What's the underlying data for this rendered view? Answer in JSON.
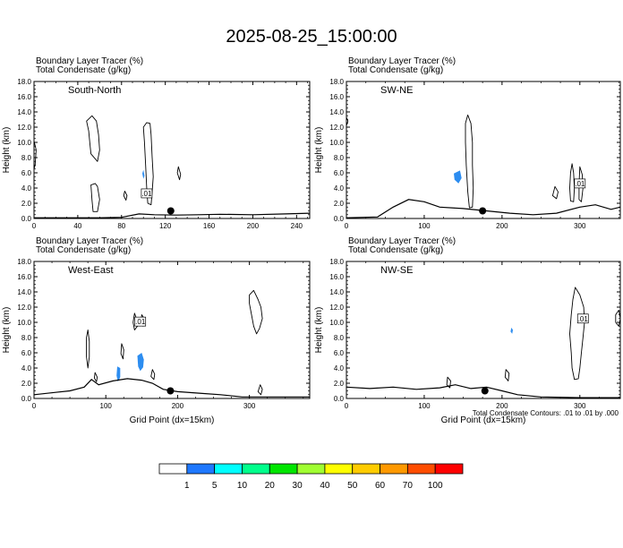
{
  "title": "2025-08-25_15:00:00",
  "colors": {
    "terrain": "#000000",
    "contour": "#000000",
    "tracer": "#2d8df0",
    "point": "#000000"
  },
  "footnote": "Total Condensate Contours: .01 to .01 by .000",
  "colorbar": {
    "colors": [
      "#ffffff",
      "#1e78ff",
      "#00ffff",
      "#00ff8c",
      "#00e600",
      "#a0ff32",
      "#ffff00",
      "#ffcc00",
      "#ff9900",
      "#ff4d00",
      "#ff0000"
    ],
    "labels": [
      "1",
      "5",
      "10",
      "20",
      "30",
      "40",
      "50",
      "60",
      "70",
      "100"
    ]
  },
  "chart_data": [
    {
      "type": "area",
      "direction": "South-North",
      "label1": "Boundary Layer Tracer   (%)",
      "label2": "Total Condensate   (g/kg)",
      "ylabel": "Height (km)",
      "xlabel": "",
      "xlim": [
        0,
        252
      ],
      "ylim": [
        0,
        18
      ],
      "xticks": [
        0,
        40,
        80,
        120,
        160,
        200,
        240
      ],
      "yticks": [
        "0.0",
        "2.0",
        "4.0",
        "6.0",
        "8.0",
        "10.0",
        "12.0",
        "14.0",
        "16.0",
        "18.0"
      ],
      "contour_label": ".01",
      "terrain": [
        [
          0,
          0.1
        ],
        [
          60,
          0.1
        ],
        [
          80,
          0.15
        ],
        [
          96,
          0.6
        ],
        [
          110,
          0.5
        ],
        [
          130,
          0.45
        ],
        [
          150,
          0.5
        ],
        [
          170,
          0.55
        ],
        [
          200,
          0.5
        ],
        [
          230,
          0.6
        ],
        [
          252,
          0.7
        ]
      ],
      "contours": [
        [
          [
            48,
            12.8
          ],
          [
            50,
            11.5
          ],
          [
            51,
            10
          ],
          [
            52,
            8.5
          ],
          [
            58,
            7.5
          ],
          [
            60,
            9
          ],
          [
            59,
            11
          ],
          [
            57,
            12.8
          ],
          [
            53,
            13.5
          ]
        ],
        [
          [
            52,
            4.4
          ],
          [
            53,
            2.4
          ],
          [
            54,
            0.9
          ],
          [
            58,
            0.9
          ],
          [
            60,
            2.5
          ],
          [
            58,
            4.2
          ],
          [
            56,
            4.6
          ]
        ],
        [
          [
            103,
            12.6
          ],
          [
            106,
            12.5
          ],
          [
            107,
            11
          ],
          [
            108,
            8
          ],
          [
            109,
            5.5
          ],
          [
            108,
            3.5
          ],
          [
            107,
            1.8
          ],
          [
            104,
            2
          ],
          [
            103,
            4
          ],
          [
            102,
            7
          ],
          [
            101,
            10
          ],
          [
            100,
            12
          ]
        ],
        [
          [
            0,
            10.2
          ],
          [
            2,
            9
          ],
          [
            1,
            7
          ],
          [
            -1,
            6
          ]
        ],
        [
          [
            132,
            6.8
          ],
          [
            134,
            5.8
          ],
          [
            133,
            5.1
          ],
          [
            131,
            6
          ]
        ],
        [
          [
            83,
            3.6
          ],
          [
            85,
            3
          ],
          [
            84,
            2.4
          ],
          [
            82,
            3
          ]
        ]
      ],
      "tracer": [
        [
          [
            100,
            6.4
          ],
          [
            101,
            5.6
          ],
          [
            100,
            5.2
          ],
          [
            99,
            5.9
          ]
        ]
      ],
      "point": [
        125,
        1.0
      ],
      "label_at": [
        103,
        3.3
      ]
    },
    {
      "type": "area",
      "direction": "SW-NE",
      "label1": "Boundary Layer Tracer   (%)",
      "label2": "Total Condensate   (g/kg)",
      "ylabel": "Height (km)",
      "xlabel": "",
      "xlim": [
        0,
        352
      ],
      "ylim": [
        0,
        18
      ],
      "xticks": [
        0,
        100,
        200,
        300
      ],
      "yticks": [
        "0.0",
        "2.0",
        "4.0",
        "6.0",
        "8.0",
        "10.0",
        "12.0",
        "14.0",
        "16.0",
        "18.0"
      ],
      "contour_label": ".01",
      "terrain": [
        [
          0,
          0.1
        ],
        [
          40,
          0.2
        ],
        [
          60,
          1.5
        ],
        [
          80,
          2.5
        ],
        [
          100,
          2.2
        ],
        [
          120,
          1.5
        ],
        [
          150,
          1.3
        ],
        [
          180,
          1.0
        ],
        [
          210,
          0.7
        ],
        [
          240,
          0.5
        ],
        [
          270,
          0.7
        ],
        [
          300,
          1.5
        ],
        [
          320,
          1.8
        ],
        [
          340,
          1.2
        ],
        [
          352,
          1.5
        ]
      ],
      "contours": [
        [
          [
            156,
            13.6
          ],
          [
            160,
            12.5
          ],
          [
            162,
            10
          ],
          [
            162,
            7
          ],
          [
            163,
            4
          ],
          [
            162,
            1.5
          ],
          [
            158,
            1.4
          ],
          [
            156,
            3.5
          ],
          [
            154,
            7
          ],
          [
            153,
            10
          ],
          [
            153,
            12.5
          ]
        ],
        [
          [
            0,
            13.3
          ],
          [
            2,
            12.8
          ],
          [
            0,
            12.2
          ]
        ],
        [
          [
            290,
            7.2
          ],
          [
            292,
            6
          ],
          [
            293,
            4
          ],
          [
            292,
            2.2
          ],
          [
            288,
            2.3
          ],
          [
            287,
            4
          ],
          [
            288,
            6
          ]
        ],
        [
          [
            300,
            6.8
          ],
          [
            303,
            5.8
          ],
          [
            304,
            4
          ],
          [
            302,
            2.2
          ],
          [
            299,
            2.5
          ],
          [
            299,
            4.5
          ]
        ],
        [
          [
            268,
            4.2
          ],
          [
            272,
            3.5
          ],
          [
            270,
            2.6
          ],
          [
            265,
            3
          ]
        ]
      ],
      "tracer": [
        [
          [
            138,
            5.9
          ],
          [
            146,
            6.3
          ],
          [
            148,
            5.3
          ],
          [
            144,
            4.6
          ],
          [
            139,
            5.1
          ]
        ]
      ],
      "point": [
        175,
        1.0
      ],
      "label_at": [
        300,
        4.6
      ]
    },
    {
      "type": "area",
      "direction": "West-East",
      "label1": "Boundary Layer Tracer   (%)",
      "label2": "Total Condensate   (g/kg)",
      "ylabel": "Height (km)",
      "xlabel": "Grid Point (dx=15km)",
      "xlim": [
        0,
        384
      ],
      "ylim": [
        0,
        18
      ],
      "xticks": [
        0,
        100,
        200,
        300
      ],
      "yticks": [
        "0.0",
        "2.0",
        "4.0",
        "6.0",
        "8.0",
        "10.0",
        "12.0",
        "14.0",
        "16.0",
        "18.0"
      ],
      "contour_label": ".01",
      "terrain": [
        [
          0,
          0.5
        ],
        [
          30,
          0.8
        ],
        [
          50,
          1.0
        ],
        [
          70,
          1.5
        ],
        [
          80,
          2.5
        ],
        [
          90,
          1.8
        ],
        [
          110,
          2.3
        ],
        [
          130,
          2.6
        ],
        [
          150,
          2.4
        ],
        [
          165,
          2.0
        ],
        [
          180,
          1.2
        ],
        [
          200,
          0.9
        ],
        [
          230,
          0.7
        ],
        [
          260,
          0.5
        ],
        [
          290,
          0.2
        ],
        [
          330,
          0.2
        ],
        [
          384,
          0.2
        ]
      ],
      "contours": [
        [
          [
            300,
            13.6
          ],
          [
            306,
            14.2
          ],
          [
            312,
            13
          ],
          [
            316,
            12
          ],
          [
            318,
            10.5
          ],
          [
            314,
            9.2
          ],
          [
            310,
            8.5
          ],
          [
            306,
            9.5
          ],
          [
            303,
            11
          ],
          [
            300,
            12.5
          ]
        ],
        [
          [
            75,
            9
          ],
          [
            77,
            7.5
          ],
          [
            77,
            5.5
          ],
          [
            75,
            4
          ],
          [
            73,
            5.5
          ],
          [
            73,
            8
          ]
        ],
        [
          [
            140,
            11.2
          ],
          [
            143,
            10.4
          ],
          [
            144,
            9.5
          ],
          [
            140,
            9
          ],
          [
            138,
            10
          ]
        ],
        [
          [
            150,
            11
          ],
          [
            153,
            10.6
          ],
          [
            152,
            9.5
          ],
          [
            149,
            9.8
          ]
        ],
        [
          [
            122,
            7.2
          ],
          [
            125,
            6.4
          ],
          [
            124,
            5.2
          ],
          [
            121,
            5.9
          ]
        ],
        [
          [
            85,
            3.4
          ],
          [
            88,
            2.8
          ],
          [
            87,
            2.2
          ],
          [
            84,
            2.7
          ]
        ],
        [
          [
            165,
            3.8
          ],
          [
            168,
            3.2
          ],
          [
            167,
            2.5
          ],
          [
            163,
            2.9
          ]
        ],
        [
          [
            315,
            1.8
          ],
          [
            318,
            1.2
          ],
          [
            316,
            0.5
          ],
          [
            312,
            0.9
          ]
        ]
      ],
      "tracer": [
        [
          [
            144,
            5.6
          ],
          [
            150,
            6.0
          ],
          [
            153,
            5.1
          ],
          [
            152,
            4.1
          ],
          [
            148,
            3.6
          ],
          [
            145,
            4.2
          ]
        ],
        [
          [
            116,
            4.2
          ],
          [
            120,
            4.0
          ],
          [
            120,
            2.8
          ],
          [
            117,
            2.2
          ],
          [
            115,
            3.0
          ]
        ]
      ],
      "point": [
        190,
        1.0
      ],
      "label_at": [
        148,
        10.1
      ]
    },
    {
      "type": "area",
      "direction": "NW-SE",
      "label1": "Boundary Layer Tracer   (%)",
      "label2": "Total Condensate   (g/kg)",
      "ylabel": "Height (km)",
      "xlabel": "Grid Point (dx=15km)",
      "xlim": [
        0,
        352
      ],
      "ylim": [
        0,
        18
      ],
      "xticks": [
        0,
        100,
        200,
        300
      ],
      "yticks": [
        "0.0",
        "2.0",
        "4.0",
        "6.0",
        "8.0",
        "10.0",
        "12.0",
        "14.0",
        "16.0",
        "18.0"
      ],
      "contour_label": ".01",
      "terrain": [
        [
          0,
          1.5
        ],
        [
          30,
          1.3
        ],
        [
          60,
          1.5
        ],
        [
          90,
          1.2
        ],
        [
          120,
          1.4
        ],
        [
          140,
          1.8
        ],
        [
          160,
          1.3
        ],
        [
          180,
          1.5
        ],
        [
          200,
          1.0
        ],
        [
          220,
          0.5
        ],
        [
          250,
          0.2
        ],
        [
          300,
          0.1
        ],
        [
          352,
          0.1
        ]
      ],
      "contours": [
        [
          [
            294,
            14.6
          ],
          [
            300,
            13.6
          ],
          [
            305,
            12
          ],
          [
            306,
            10
          ],
          [
            304,
            8
          ],
          [
            302,
            6
          ],
          [
            300,
            4
          ],
          [
            298,
            2.6
          ],
          [
            293,
            2.5
          ],
          [
            290,
            4
          ],
          [
            289,
            6
          ],
          [
            287,
            8.5
          ],
          [
            289,
            11
          ],
          [
            291,
            13
          ]
        ],
        [
          [
            346,
            11
          ],
          [
            350,
            11.6
          ],
          [
            352,
            10.5
          ],
          [
            350,
            9.5
          ],
          [
            346,
            10
          ]
        ],
        [
          [
            205,
            3.8
          ],
          [
            209,
            3.3
          ],
          [
            208,
            2.3
          ],
          [
            204,
            2.8
          ]
        ],
        [
          [
            130,
            2.8
          ],
          [
            134,
            2.3
          ],
          [
            133,
            1.4
          ],
          [
            129,
            1.8
          ]
        ]
      ],
      "tracer": [
        [
          [
            212,
            9.3
          ],
          [
            214,
            9.0
          ],
          [
            213,
            8.5
          ],
          [
            211,
            8.8
          ]
        ]
      ],
      "point": [
        178,
        1.0
      ],
      "label_at": [
        304,
        10.5
      ]
    }
  ]
}
